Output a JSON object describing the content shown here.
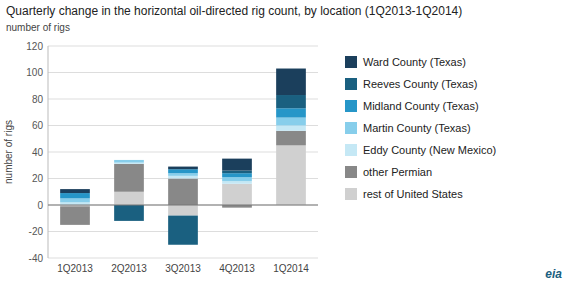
{
  "chart_data": {
    "type": "bar",
    "stacked": true,
    "title": "Quarterly change in the horizontal oil-directed rig count, by location (1Q2013-1Q2014)",
    "ylabel": "number of rigs",
    "categories": [
      "1Q2013",
      "2Q2013",
      "3Q2013",
      "4Q2013",
      "1Q2014"
    ],
    "series": [
      {
        "name": "rest of United States",
        "color": "#d0d0d0",
        "values": [
          -1,
          10,
          -8,
          16,
          45
        ]
      },
      {
        "name": "other Permian",
        "color": "#888888",
        "values": [
          -14,
          21,
          20,
          -2,
          11
        ]
      },
      {
        "name": "Eddy County (New Mexico)",
        "color": "#c5e8f5",
        "values": [
          2,
          1,
          2,
          2,
          4
        ]
      },
      {
        "name": "Martin County (Texas)",
        "color": "#87ceeb",
        "values": [
          3,
          2,
          2,
          3,
          6
        ]
      },
      {
        "name": "Midland County (Texas)",
        "color": "#2696c8",
        "values": [
          4,
          0,
          3,
          3,
          7
        ]
      },
      {
        "name": "Reeves County (Texas)",
        "color": "#1a6080",
        "values": [
          0,
          -12,
          -22,
          2,
          10
        ]
      },
      {
        "name": "Ward County (Texas)",
        "color": "#1b3f5c",
        "values": [
          3,
          0,
          2,
          9,
          20
        ]
      }
    ],
    "ylim": [
      -40,
      120
    ],
    "yticks": [
      -40,
      -20,
      0,
      20,
      40,
      60,
      80,
      100,
      120
    ],
    "grid": true,
    "legend": "right",
    "annotations": [
      "eia"
    ]
  }
}
